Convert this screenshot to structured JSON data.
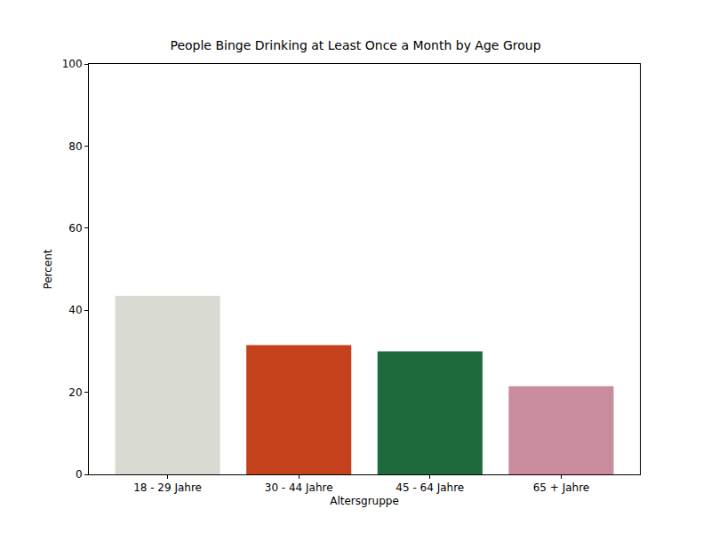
{
  "chart_data": {
    "type": "bar",
    "title": "People Binge Drinking at Least Once a Month by Age Group",
    "x_label": "Altersgruppe",
    "y_label": "Percent",
    "categories": [
      "18 - 29 Jahre",
      "30 - 44 Jahre",
      "45 - 64 Jahre",
      "65 + Jahre"
    ],
    "values": [
      43.5,
      31.5,
      30,
      21.5
    ],
    "colors": [
      "#d9dbd2",
      "#c4411c",
      "#1d6b3c",
      "#c98c9c"
    ],
    "ylim": [
      0,
      100
    ],
    "yticks": [
      0,
      20,
      40,
      60,
      80,
      100
    ],
    "grid": false
  }
}
